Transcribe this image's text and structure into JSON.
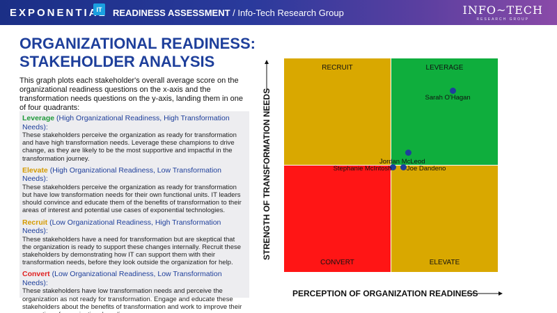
{
  "header": {
    "brand": "EXPONENTIAL",
    "brand_badge": "IT",
    "title_strong": "READINESS ASSESSMENT",
    "title_rest": " / Info-Tech Research Group",
    "logo_main": "INFO~TECH",
    "logo_sub": "RESEARCH GROUP"
  },
  "page": {
    "title_line1": "ORGANIZATIONAL READINESS:",
    "title_line2": "STAKEHOLDER ANALYSIS",
    "intro": "This graph plots each stakeholder's overall average score on the organizational readiness questions on the x-axis and the transformation needs questions on the y-axis, landing them in one of four quadrants:"
  },
  "quadrant_descriptions": [
    {
      "name": "Leverage",
      "subtitle": " (High Organizational Readiness, High Transformation Needs):",
      "text": "These stakeholders perceive the organization as ready for transformation and have high transformation needs. Leverage these champions to drive change, as they are likely to be the most supportive and impactful in the transformation journey.",
      "color": "#1f9a3a"
    },
    {
      "name": "Elevate",
      "subtitle": " (High Organizational Readiness, Low Transformation Needs):",
      "text": "These stakeholders perceive the organization as ready for transformation but have low transformation needs for their own functional units. IT leaders should convince and educate them of the benefits of transformation to their areas of interest and potential use cases of exponential technologies.",
      "color": "#d49a00"
    },
    {
      "name": "Recruit",
      "subtitle": " (Low Organizational Readiness, High Transformation Needs):",
      "text": "These stakeholders have a need for transformation but are skeptical that the organization is ready to support these changes internally. Recruit these stakeholders by demonstrating how IT can support them with their transformation needs, before they look outside the organization for help.",
      "color": "#d49a00"
    },
    {
      "name": "Convert",
      "subtitle": " (Low Organizational Readiness, Low Transformation Needs):",
      "text": "These stakeholders have low transformation needs and perceive the organization as not ready for transformation. Engage and educate these stakeholders about the benefits of transformation and work to improve their perception of organizational readiness.",
      "color": "#e02020"
    }
  ],
  "chart": {
    "quadrants": {
      "top_left": "RECRUIT",
      "top_right": "LEVERAGE",
      "bottom_left": "CONVERT",
      "bottom_right": "ELEVATE"
    },
    "colors": {
      "gold": "#d9a800",
      "green": "#0fae3d",
      "red": "#ff1515",
      "point": "#1e3f9b"
    },
    "x_axis_label": "PERCEPTION OF ORGANIZATION READINESS",
    "y_axis_label": "STRENGTH OF TRANSFORMATION NEEDS"
  },
  "chart_data": {
    "type": "scatter",
    "title": "",
    "xlabel": "PERCEPTION OF ORGANIZATION READINESS",
    "ylabel": "STRENGTH OF TRANSFORMATION NEEDS",
    "xlim": [
      0,
      1
    ],
    "ylim": [
      0,
      1
    ],
    "grid": false,
    "points": [
      {
        "label": "Sarah O'Hagan",
        "x": 0.79,
        "y": 0.85
      },
      {
        "label": "Jordan McLeod",
        "x": 0.58,
        "y": 0.56
      },
      {
        "label": "Stephanie McIntosh",
        "x": 0.51,
        "y": 0.49
      },
      {
        "label": "Joe Dandeno",
        "x": 0.56,
        "y": 0.49
      }
    ]
  }
}
